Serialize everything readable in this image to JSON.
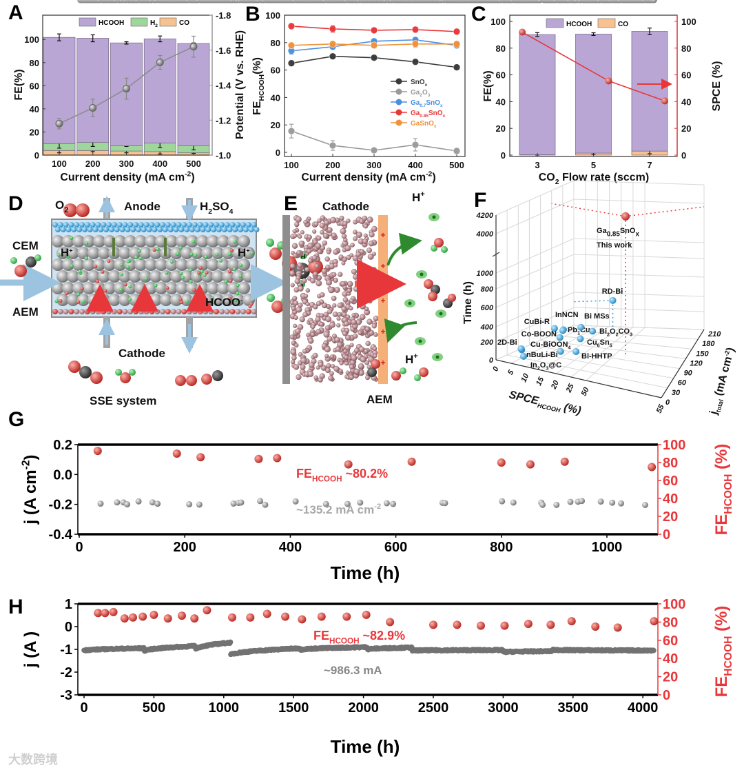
{
  "figure": {
    "panel_labels": [
      "A",
      "B",
      "C",
      "D",
      "E",
      "F",
      "G",
      "H"
    ],
    "watermark": "大数跨境"
  },
  "colors": {
    "hcooh": "#b9a6d4",
    "h2": "#9fd69c",
    "co": "#f7c28f",
    "snox": "#3a3a3a",
    "ga2o3": "#9a9a9a",
    "ga07": "#4a8fe0",
    "ga085": "#e8373a",
    "gasnox": "#f0913a",
    "red": "#e8373a",
    "gray_points": "#8c8c8c",
    "dark_points": "#6e6e6e",
    "blue_points": "#2a9fd6"
  },
  "chart_data": [
    {
      "panel": "A",
      "type": "bar",
      "stacked": true,
      "categories": [
        "100",
        "200",
        "300",
        "400",
        "500"
      ],
      "series": [
        {
          "name": "HCOOH",
          "label": [
            {
              "text": "HCOOH"
            }
          ],
          "values": [
            91.8,
            90.0,
            89.0,
            90.0,
            88.5
          ],
          "error": [
            3.0,
            3.0,
            1.0,
            2.5,
            0.5
          ]
        },
        {
          "name": "H2",
          "label": [
            {
              "text": "H"
            },
            {
              "sub": "2"
            }
          ],
          "values": [
            6.0,
            7.0,
            4.5,
            7.5,
            6.0
          ],
          "error": [
            4.0,
            3.5,
            0.5,
            4.0,
            3.5
          ]
        },
        {
          "name": "CO",
          "label": [
            {
              "text": "CO"
            }
          ],
          "values": [
            4.0,
            4.0,
            3.5,
            3.0,
            2.0
          ],
          "error": [
            2.0,
            1.0,
            1.5,
            2.0,
            0.5
          ]
        }
      ],
      "potential": {
        "values": [
          -1.18,
          -1.27,
          -1.38,
          -1.53,
          -1.62
        ],
        "error": [
          0.03,
          0.05,
          0.06,
          0.04,
          0.06
        ]
      },
      "ylim": [
        0,
        121
      ],
      "yticks": [
        "0",
        "20",
        "40",
        "60",
        "80",
        "100"
      ],
      "y2lim": [
        -1.0,
        -1.8
      ],
      "y2ticks": [
        "-1.0",
        "-1.2",
        "-1.4",
        "-1.6",
        "-1.8"
      ],
      "ylabel": "FE(%)",
      "y2label": "Potential (V vs. RHE)",
      "xlabel": [
        {
          "text": "Current density (mA cm"
        },
        {
          "sup": "-2"
        },
        {
          "text": ")"
        }
      ],
      "legend": "top"
    },
    {
      "panel": "B",
      "type": "line",
      "categories": [
        "100",
        "200",
        "300",
        "400",
        "500"
      ],
      "series": [
        {
          "name": "SnOx",
          "label": [
            {
              "text": "SnO"
            },
            {
              "sub": "x"
            }
          ],
          "values": [
            65,
            70,
            69,
            66,
            62
          ],
          "error": [
            2,
            1,
            1,
            1,
            1
          ]
        },
        {
          "name": "Ga2O3",
          "label": [
            {
              "text": "Ga"
            },
            {
              "sub": "2"
            },
            {
              "text": "O"
            },
            {
              "sub": "3"
            }
          ],
          "values": [
            15.5,
            5,
            1.5,
            5.5,
            1
          ],
          "error": [
            5,
            3.5,
            1,
            4.5,
            2
          ]
        },
        {
          "name": "Ga0.7SnOx",
          "label": [
            {
              "text": "Ga"
            },
            {
              "sub": "0.7"
            },
            {
              "text": "SnO"
            },
            {
              "sub": "x"
            }
          ],
          "values": [
            74,
            77,
            81,
            82,
            78
          ],
          "error": [
            2.5,
            2,
            1,
            1,
            2
          ]
        },
        {
          "name": "Ga0.85SnOx",
          "label": [
            {
              "text": "Ga"
            },
            {
              "sub": "0.85"
            },
            {
              "text": "SnO"
            },
            {
              "sub": "x"
            }
          ],
          "values": [
            92,
            90,
            89,
            89.5,
            88
          ],
          "error": [
            2,
            2.5,
            1,
            2,
            1
          ]
        },
        {
          "name": "GaSnOx",
          "label": [
            {
              "text": "GaSnO"
            },
            {
              "sub": "x"
            }
          ],
          "values": [
            78,
            79,
            78,
            79,
            79
          ],
          "error": [
            1,
            2,
            2,
            2.5,
            2
          ]
        }
      ],
      "ylim": [
        0,
        103
      ],
      "yticks": [
        "0",
        "20",
        "40",
        "60",
        "80",
        "100"
      ],
      "ylabel": [
        {
          "text": "FE"
        },
        {
          "sub": "HCOOH"
        },
        {
          "text": "(%)"
        }
      ],
      "xlabel": [
        {
          "text": "Current density (mA cm"
        },
        {
          "sup": "-2"
        },
        {
          "text": ")"
        }
      ],
      "legend": "center-right"
    },
    {
      "panel": "C",
      "type": "bar",
      "stacked": true,
      "categories": [
        "3",
        "5",
        "7"
      ],
      "series": [
        {
          "name": "HCOOH",
          "label": [
            {
              "text": "HCOOH"
            }
          ],
          "values": [
            89.8,
            89.0,
            89.5
          ],
          "error": [
            1.5,
            1.0,
            2.5
          ]
        },
        {
          "name": "CO",
          "label": [
            {
              "text": "CO"
            }
          ],
          "values": [
            0.3,
            1.5,
            3.0
          ],
          "error": [
            0.3,
            0.8,
            2.0
          ]
        }
      ],
      "spce": {
        "values": [
          92,
          55.5,
          40.5
        ]
      },
      "ylim": [
        0,
        100
      ],
      "yticks": [
        "0",
        "20",
        "40",
        "60",
        "80",
        "100"
      ],
      "y2lim": [
        0,
        100
      ],
      "y2ticks": [
        "0",
        "20",
        "40",
        "60",
        "80",
        "100"
      ],
      "ylabel": "FE(%)",
      "y2label": "SPCE (%)",
      "xlabel": [
        {
          "text": "CO"
        },
        {
          "sub": "2"
        },
        {
          "text": " Flow rate (sccm)"
        }
      ],
      "legend": "top"
    },
    {
      "panel": "F",
      "type": "scatter3d",
      "xlabel": [
        {
          "text": "SPCE"
        },
        {
          "sub": "HCOOH"
        },
        {
          "text": " (%)"
        }
      ],
      "ylabel": [
        {
          "text": "j"
        },
        {
          "sub": "total"
        },
        {
          "text": " (mA cm"
        },
        {
          "sup": "-2"
        },
        {
          "text": ")"
        }
      ],
      "zlabel": "Time (h)",
      "xticks": [
        "0",
        "5",
        "10",
        "15",
        "20",
        "25",
        "50",
        "55"
      ],
      "yticks": [
        "0",
        "30",
        "60",
        "90",
        "120",
        "150",
        "180",
        "210"
      ],
      "zticks": [
        "0",
        "200",
        "400",
        "600",
        "800",
        "1000",
        "4000",
        "4200"
      ],
      "points": [
        {
          "name": "2D-Bi",
          "label": [
            {
              "text": "2D-Bi"
            }
          ],
          "spce": 5,
          "j": 30,
          "time": 90,
          "highlight": false
        },
        {
          "name": "nBuLi-Bi",
          "label": [
            {
              "text": "nBuLi-Bi"
            }
          ],
          "spce": 6,
          "j": 20,
          "time": 130,
          "highlight": false
        },
        {
          "name": "In2O3@C",
          "label": [
            {
              "text": "In"
            },
            {
              "sub": "2"
            },
            {
              "text": "O"
            },
            {
              "sub": "3"
            },
            {
              "text": "@C"
            }
          ],
          "spce": 8,
          "j": 10,
          "time": 80,
          "highlight": false
        },
        {
          "name": "Cu-BiOON4",
          "label": [
            {
              "text": "Cu-BiOON"
            },
            {
              "sub": "4"
            }
          ],
          "spce": 15,
          "j": 60,
          "time": 70,
          "highlight": false
        },
        {
          "name": "CuBi-R",
          "label": [
            {
              "text": "CuBi-R"
            }
          ],
          "spce": 14,
          "j": 50,
          "time": 370,
          "highlight": false
        },
        {
          "name": "InNCN",
          "label": [
            {
              "text": "InNCN"
            }
          ],
          "spce": 16,
          "j": 60,
          "time": 340,
          "highlight": false
        },
        {
          "name": "Co-BOON",
          "label": [
            {
              "text": "Co-BOON"
            }
          ],
          "spce": 17,
          "j": 40,
          "time": 300,
          "highlight": false
        },
        {
          "name": "Pb1Cu",
          "label": [
            {
              "text": "Pb"
            },
            {
              "sub": "1"
            },
            {
              "text": "Cu"
            }
          ],
          "spce": 18,
          "j": 40,
          "time": 400,
          "highlight": false
        },
        {
          "name": "Bi MSs",
          "label": [
            {
              "text": "Bi MSs"
            }
          ],
          "spce": 20,
          "j": 80,
          "time": 340,
          "highlight": false
        },
        {
          "name": "Bi2O2CO3",
          "label": [
            {
              "text": "Bi"
            },
            {
              "sub": "2"
            },
            {
              "text": "O"
            },
            {
              "sub": "2"
            },
            {
              "text": "CO"
            },
            {
              "sub": "3"
            }
          ],
          "spce": 22,
          "j": 100,
          "time": 240,
          "highlight": false
        },
        {
          "name": "Cu6Sn5",
          "label": [
            {
              "text": "Cu"
            },
            {
              "sub": "6"
            },
            {
              "text": "Sn"
            },
            {
              "sub": "5"
            }
          ],
          "spce": 22,
          "j": 60,
          "time": 260,
          "highlight": false
        },
        {
          "name": "Bi-HHTP",
          "label": [
            {
              "text": "Bi-HHTP"
            }
          ],
          "spce": 21,
          "j": 55,
          "time": 115,
          "highlight": false
        },
        {
          "name": "RD-Bi",
          "label": [
            {
              "text": "RD-Bi"
            }
          ],
          "spce": 24,
          "j": 150,
          "time": 480,
          "highlight": false
        },
        {
          "name": "Ga0.85SnOx",
          "label": [
            {
              "text": "Ga"
            },
            {
              "sub": "0.85"
            },
            {
              "text": "SnO"
            },
            {
              "sub": "x"
            }
          ],
          "label2": "This work",
          "spce": 45,
          "j": 150,
          "time": 4000,
          "highlight": true
        }
      ]
    },
    {
      "panel": "G",
      "type": "scatter",
      "xlim": [
        0,
        1100
      ],
      "xticks": [
        "0",
        "200",
        "400",
        "600",
        "800",
        "1000"
      ],
      "ylim": [
        -0.4,
        0.2
      ],
      "yticks": [
        "-0.4",
        "-0.2",
        "0.0",
        "0.2"
      ],
      "y2lim": [
        0,
        100
      ],
      "y2ticks": [
        "0",
        "20",
        "40",
        "60",
        "80",
        "100"
      ],
      "xlabel": "Time (h)",
      "ylabel": [
        {
          "text": "j"
        },
        {
          "text": " (A cm"
        },
        {
          "sup": "-2"
        },
        {
          "text": ")"
        }
      ],
      "y2label": [
        {
          "text": "FE"
        },
        {
          "sub": "HCOOH"
        },
        {
          "text": " (%)"
        }
      ],
      "fe": {
        "t": [
          35,
          185,
          230,
          340,
          375,
          510,
          630,
          800,
          855,
          920,
          1085
        ],
        "values": [
          93,
          90,
          86,
          84,
          85,
          78,
          81,
          80,
          78,
          81,
          75
        ]
      },
      "j_trend": {
        "t": [
          0,
          250,
          400,
          700,
          1000,
          1090
        ],
        "j": [
          -0.125,
          -0.115,
          -0.145,
          -0.15,
          -0.14,
          -0.115
        ],
        "spread": 0.04
      },
      "annotation_fe": [
        {
          "text": "FE"
        },
        {
          "sub": "HCOOH"
        },
        {
          "text": "  ~80.2%"
        }
      ],
      "annotation_j": [
        {
          "text": "~135.2 mA cm"
        },
        {
          "sup": "-2"
        }
      ]
    },
    {
      "panel": "H",
      "type": "scatter",
      "xlim": [
        0,
        4110
      ],
      "xticks": [
        "0",
        "500",
        "1000",
        "1500",
        "2000",
        "2500",
        "3000",
        "3500",
        "4000"
      ],
      "ylim": [
        -3,
        1
      ],
      "yticks": [
        "-3",
        "-2",
        "-1",
        "0",
        "1"
      ],
      "y2lim": [
        0,
        100
      ],
      "y2ticks": [
        "0",
        "20",
        "40",
        "60",
        "80",
        "100"
      ],
      "xlabel": "Time (h)",
      "ylabel": [
        {
          "text": "j"
        },
        {
          "text": " (A )"
        }
      ],
      "y2label": [
        {
          "text": "FE"
        },
        {
          "sub": "HCOOH"
        },
        {
          "text": " (%)"
        }
      ],
      "fe": {
        "t": [
          100,
          150,
          210,
          290,
          350,
          420,
          500,
          600,
          700,
          790,
          880,
          1060,
          1190,
          1310,
          1440,
          1560,
          1700,
          1880,
          2020,
          2190,
          2500,
          2670,
          2840,
          3010,
          3180,
          3340,
          3490,
          3660,
          3820,
          4080
        ],
        "values": [
          90,
          90,
          91,
          84,
          85,
          86,
          88,
          84,
          87,
          84,
          93,
          85,
          85,
          89,
          86,
          83,
          86,
          86,
          88,
          80,
          77,
          77,
          76,
          76,
          78,
          77,
          81,
          75,
          74,
          81
        ]
      },
      "j_segments": [
        {
          "t0": 0,
          "t1": 430,
          "j0": -1.05,
          "j1": -0.95
        },
        {
          "t0": 430,
          "t1": 800,
          "j0": -1.08,
          "j1": -0.85
        },
        {
          "t0": 800,
          "t1": 1050,
          "j0": -1.0,
          "j1": -0.7
        },
        {
          "t0": 1050,
          "t1": 1550,
          "j0": -1.25,
          "j1": -0.95
        },
        {
          "t0": 1550,
          "t1": 2030,
          "j0": -1.02,
          "j1": -0.9
        },
        {
          "t0": 2030,
          "t1": 2350,
          "j0": -1.0,
          "j1": -0.92
        },
        {
          "t0": 2350,
          "t1": 3000,
          "j0": -1.05,
          "j1": -1.03
        },
        {
          "t0": 3000,
          "t1": 3350,
          "j0": -1.12,
          "j1": -1.08
        },
        {
          "t0": 3350,
          "t1": 4080,
          "j0": -1.02,
          "j1": -1.05
        }
      ],
      "annotation_fe": [
        {
          "text": "FE"
        },
        {
          "sub": "HCOOH"
        },
        {
          "text": "  ~82.9%"
        }
      ],
      "annotation_j": [
        {
          "text": "~986.3 mA"
        }
      ]
    }
  ],
  "diagram_d": {
    "o2": [
      {
        "text": "O"
      },
      {
        "sub": "2"
      }
    ],
    "anode": [
      {
        "text": "Anode"
      }
    ],
    "h2so4": [
      {
        "text": "H"
      },
      {
        "sub": "2"
      },
      {
        "text": "SO"
      },
      {
        "sub": "4"
      }
    ],
    "cem": [
      {
        "text": "CEM"
      }
    ],
    "h_plus_left": [
      {
        "text": "H"
      },
      {
        "sup": "+"
      }
    ],
    "h_plus_right": [
      {
        "text": "H"
      },
      {
        "sup": "+"
      }
    ],
    "aem": [
      {
        "text": "AEM"
      }
    ],
    "hcoo": [
      {
        "text": "HCOO"
      },
      {
        "sup": "-"
      }
    ],
    "cathode": [
      {
        "text": "Cathode"
      }
    ],
    "system": [
      {
        "text": "SSE system"
      }
    ],
    "atoms": [
      "H",
      "C",
      "H"
    ]
  },
  "diagram_e": {
    "cathode": [
      {
        "text": "Cathode"
      }
    ],
    "h_plus_top": [
      {
        "text": "H"
      },
      {
        "sup": "+"
      }
    ],
    "h_plus_bottom": [
      {
        "text": "H"
      },
      {
        "sup": "+"
      }
    ],
    "aem": [
      {
        "text": "AEM"
      }
    ],
    "plus_sign": "+"
  }
}
